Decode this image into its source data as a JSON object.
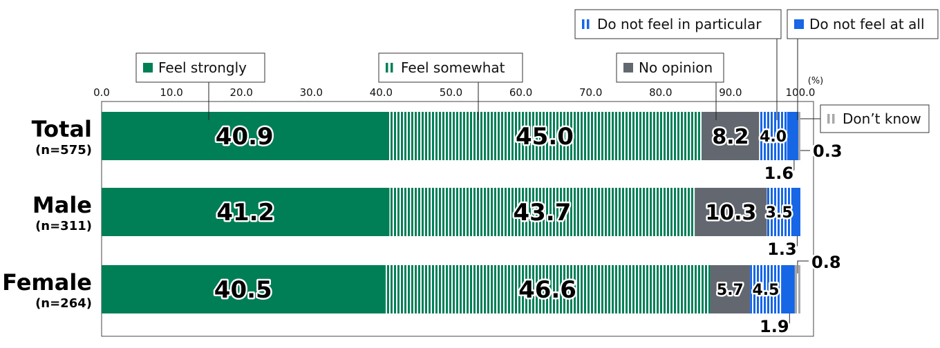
{
  "chart_data": {
    "type": "bar",
    "orientation": "horizontal",
    "stacked": true,
    "unit_label": "(%)",
    "xlim": [
      0,
      100
    ],
    "ticks": [
      "0.0",
      "10.0",
      "20.0",
      "30.0",
      "40.0",
      "50.0",
      "60.0",
      "70.0",
      "80.0",
      "90.0",
      "100.0"
    ],
    "categories": [
      {
        "label": "Total",
        "sublabel": "(n=575)"
      },
      {
        "label": "Male",
        "sublabel": "(n=311)"
      },
      {
        "label": "Female",
        "sublabel": "(n=264)"
      }
    ],
    "series": [
      {
        "name": "Feel strongly",
        "color": "#007f56",
        "pattern": "solid",
        "values": [
          40.9,
          41.2,
          40.5
        ]
      },
      {
        "name": "Feel somewhat",
        "color": "#007f56",
        "pattern": "stripes",
        "values": [
          45.0,
          43.7,
          46.6
        ]
      },
      {
        "name": "No opinion",
        "color": "#636870",
        "pattern": "solid",
        "values": [
          8.2,
          10.3,
          5.7
        ]
      },
      {
        "name": "Do not feel in particular",
        "color": "#1666e6",
        "pattern": "stripes",
        "values": [
          4.0,
          3.5,
          4.5
        ]
      },
      {
        "name": "Do not feel at all",
        "color": "#1666e6",
        "pattern": "solid",
        "values": [
          1.6,
          1.3,
          1.9
        ]
      },
      {
        "name": "Don’t know",
        "color": "#a8a8a8",
        "pattern": "stripes",
        "values": [
          0.3,
          null,
          0.8
        ]
      }
    ],
    "value_labels": [
      [
        "40.9",
        "45.0",
        "8.2",
        "4.0",
        "1.6",
        "0.3"
      ],
      [
        "41.2",
        "43.7",
        "10.3",
        "3.5",
        "1.3",
        ""
      ],
      [
        "40.5",
        "46.6",
        "5.7",
        "4.5",
        "1.9",
        "0.8"
      ]
    ],
    "legend_placement": "top, callout boxes",
    "grid": false
  }
}
